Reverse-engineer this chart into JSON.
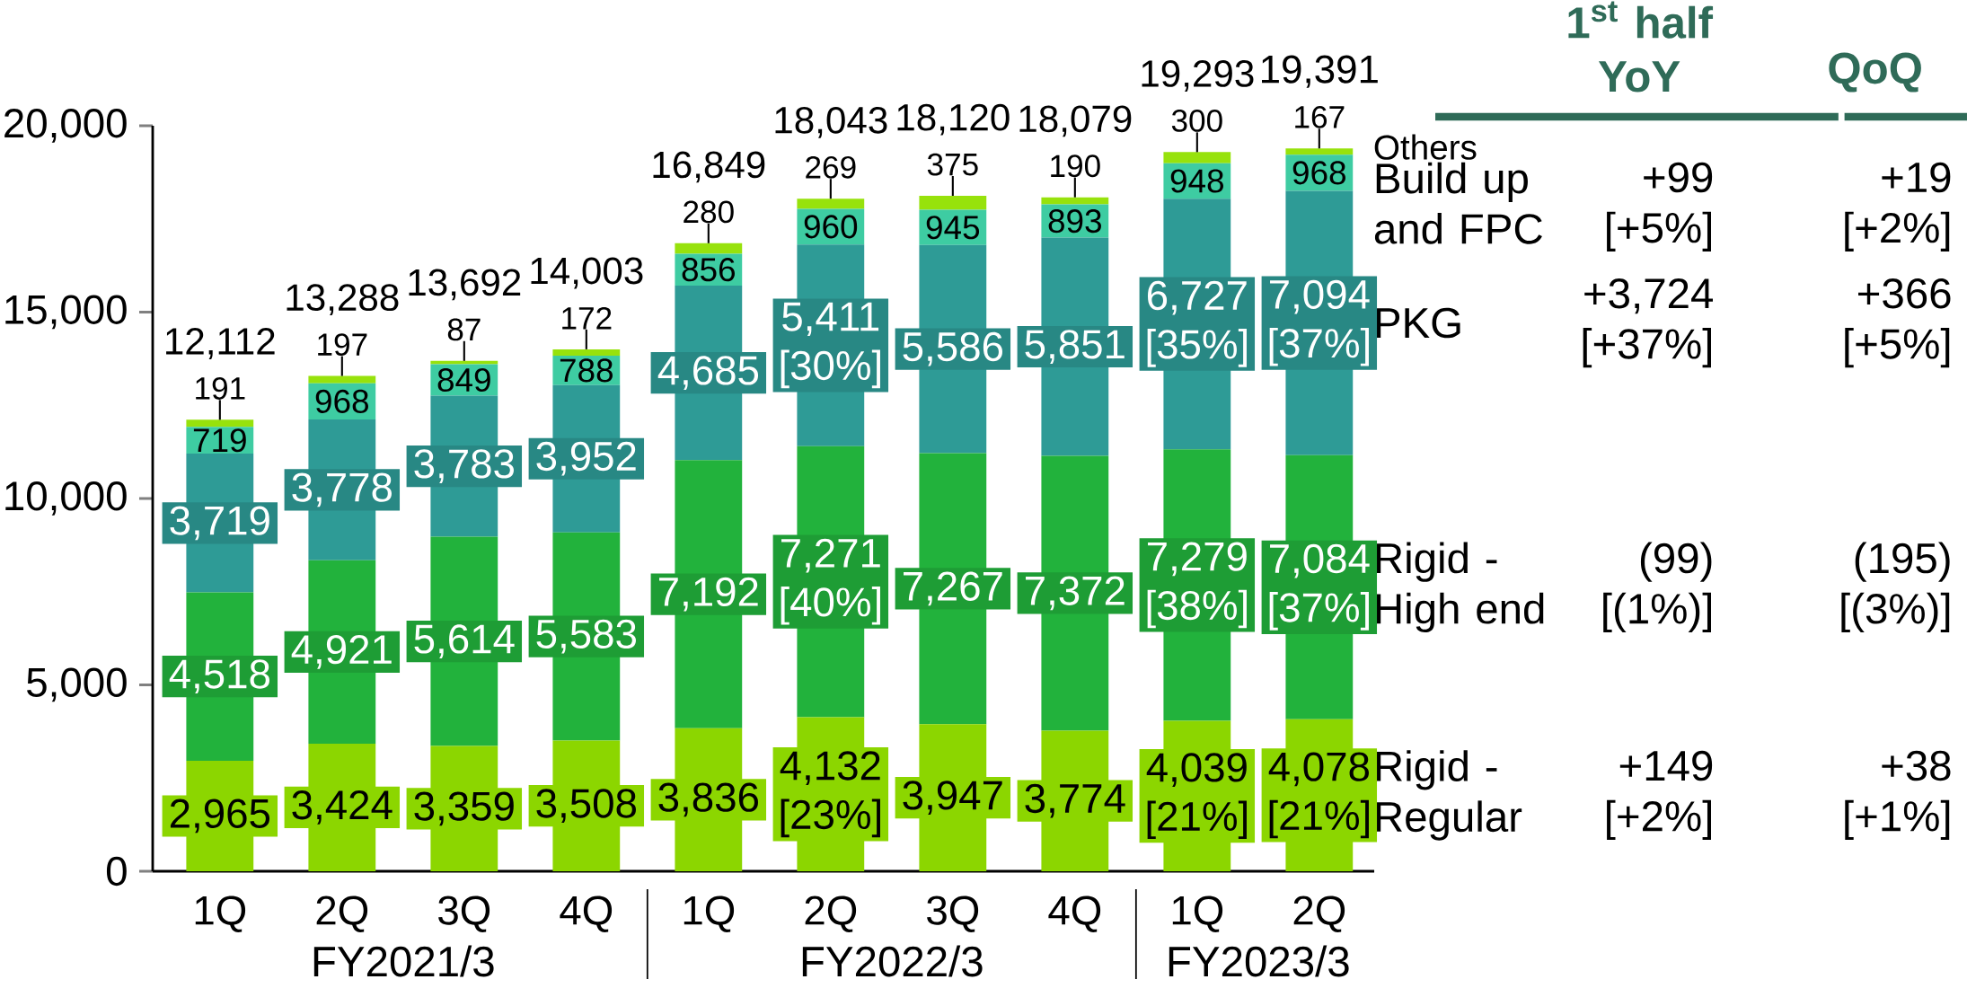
{
  "chart_data": {
    "type": "bar",
    "stacked": true,
    "categories": [
      "1Q",
      "2Q",
      "3Q",
      "4Q",
      "1Q",
      "2Q",
      "3Q",
      "4Q",
      "1Q",
      "2Q"
    ],
    "series": [
      {
        "name": "Rigid - Regular",
        "color": "#8cd600",
        "values": [
          2965,
          3424,
          3359,
          3508,
          3836,
          4132,
          3947,
          3774,
          4039,
          4078
        ],
        "value_labels": [
          "2,965",
          "3,424",
          "3,359",
          "3,508",
          "3,836",
          "4,132 [23%]",
          "3,947",
          "3,774",
          "4,039 [21%]",
          "4,078 [21%]"
        ]
      },
      {
        "name": "Rigid - High end",
        "color": "#22b23c",
        "values": [
          4518,
          4921,
          5614,
          5583,
          7192,
          7271,
          7267,
          7372,
          7279,
          7084
        ],
        "value_labels": [
          "4,518",
          "4,921",
          "5,614",
          "5,583",
          "7,192",
          "7,271 [40%]",
          "7,267",
          "7,372",
          "7,279 [38%]",
          "7,084 [37%]"
        ]
      },
      {
        "name": "PKG",
        "color": "#2e9b96",
        "values": [
          3719,
          3778,
          3783,
          3952,
          4685,
          5411,
          5586,
          5851,
          6727,
          7094
        ],
        "value_labels": [
          "3,719",
          "3,778",
          "3,783",
          "3,952",
          "4,685",
          "5,411 [30%]",
          "5,586",
          "5,851",
          "6,727 [35%]",
          "7,094 [37%]"
        ]
      },
      {
        "name": "Build up and FPC",
        "color": "#3ecca2",
        "values": [
          719,
          968,
          849,
          788,
          856,
          960,
          945,
          893,
          948,
          968
        ],
        "value_labels": [
          "719",
          "968",
          "849",
          "788",
          "856",
          "960",
          "945",
          "893",
          "948",
          "968"
        ]
      },
      {
        "name": "Others",
        "color": "#97e20c",
        "values": [
          191,
          197,
          87,
          172,
          280,
          269,
          375,
          190,
          300,
          167
        ],
        "value_labels": [
          "191",
          "197",
          "87",
          "172",
          "280",
          "269",
          "375",
          "190",
          "300",
          "167"
        ]
      }
    ],
    "totals": [
      "12,112",
      "13,288",
      "13,692",
      "14,003",
      "16,849",
      "18,043",
      "18,120",
      "18,079",
      "19,293",
      "19,391"
    ],
    "ylim": [
      0,
      20000
    ],
    "yticks": [
      0,
      {
        "value": 5000,
        "label": "5,000"
      },
      {
        "value": 10000,
        "label": "10,000"
      },
      {
        "value": 15000,
        "label": "15,000"
      },
      {
        "value": 20000,
        "label": "20,000"
      }
    ],
    "annotations": [
      "FY2021/3",
      "FY2022/3",
      "FY2023/3",
      "1$^{st}$ half YoY",
      "QoQ",
      "+99 [+5%]",
      "+19 [+2%]",
      "+3,724 [+37%]",
      "+366 [+5%]",
      "(99) [(1%)]",
      "(195) [(3%)]",
      "+149 [+2%]",
      "+38 [+1%]"
    ]
  }
}
